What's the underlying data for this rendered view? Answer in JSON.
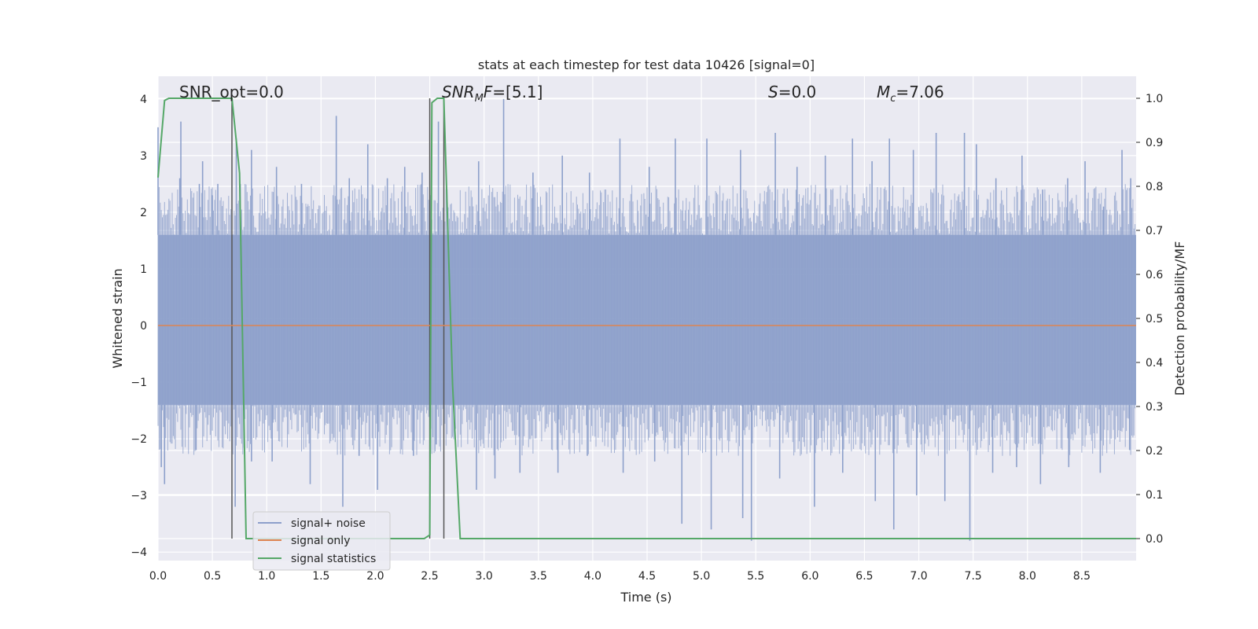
{
  "chart_data": {
    "type": "line",
    "title": "stats at each timestep for test data 10426 [signal=0]",
    "xlabel": "Time (s)",
    "ylabel": "Whitened strain",
    "y2label": "Detection probability/MF",
    "xlim": [
      0,
      9.0
    ],
    "ylim": [
      -4.15,
      4.4
    ],
    "y2lim": [
      -0.05,
      1.05
    ],
    "xticks": [
      "0.0",
      "0.5",
      "1.0",
      "1.5",
      "2.0",
      "2.5",
      "3.0",
      "3.5",
      "4.0",
      "4.5",
      "5.0",
      "5.5",
      "6.0",
      "6.5",
      "7.0",
      "7.5",
      "8.0",
      "8.5"
    ],
    "yticks": [
      "4",
      "3",
      "2",
      "1",
      "0",
      "−1",
      "−2",
      "−3",
      "−4"
    ],
    "y2ticks": [
      "1.0",
      "0.9",
      "0.8",
      "0.7",
      "0.6",
      "0.5",
      "0.4",
      "0.3",
      "0.2",
      "0.1",
      "0.0"
    ],
    "grid": true,
    "legend_position": "lower-left",
    "annotations": [
      {
        "id": "snr-opt",
        "prefix": "SNR_opt=",
        "value": "0.0"
      },
      {
        "id": "snr-mf",
        "base": "SNR",
        "sub": "M",
        "after": "F=",
        "value": "[5.1]"
      },
      {
        "id": "s-stat",
        "base": "S",
        "after": "=",
        "value": "0.0"
      },
      {
        "id": "mc",
        "base": "M",
        "sub": "c",
        "after": "=",
        "value": "7.06"
      }
    ],
    "vlines_x": [
      0.68,
      2.5,
      2.63
    ],
    "noise": {
      "baseline_low": -1.4,
      "baseline_high": 1.6,
      "spikes_up": [
        [
          0.0,
          3.5
        ],
        [
          0.2,
          2.6
        ],
        [
          0.21,
          3.6
        ],
        [
          0.38,
          2.5
        ],
        [
          0.41,
          2.9
        ],
        [
          0.5,
          2.3
        ],
        [
          0.55,
          2.5
        ],
        [
          0.72,
          3.3
        ],
        [
          0.86,
          3.1
        ],
        [
          1.09,
          2.8
        ],
        [
          1.32,
          2.5
        ],
        [
          1.64,
          3.7
        ],
        [
          1.76,
          2.6
        ],
        [
          1.93,
          3.2
        ],
        [
          2.11,
          2.6
        ],
        [
          2.27,
          2.8
        ],
        [
          2.43,
          2.7
        ],
        [
          2.58,
          3.6
        ],
        [
          2.95,
          2.9
        ],
        [
          3.18,
          4.0
        ],
        [
          3.45,
          2.7
        ],
        [
          3.72,
          3.0
        ],
        [
          3.97,
          2.7
        ],
        [
          4.25,
          3.3
        ],
        [
          4.52,
          2.8
        ],
        [
          4.76,
          3.3
        ],
        [
          5.05,
          3.3
        ],
        [
          5.36,
          3.1
        ],
        [
          5.68,
          3.4
        ],
        [
          5.88,
          2.8
        ],
        [
          6.14,
          3.0
        ],
        [
          6.39,
          3.3
        ],
        [
          6.57,
          2.9
        ],
        [
          6.73,
          3.3
        ],
        [
          6.95,
          3.1
        ],
        [
          7.16,
          3.4
        ],
        [
          7.42,
          3.4
        ],
        [
          7.53,
          3.2
        ],
        [
          7.71,
          2.6
        ],
        [
          7.95,
          3.0
        ],
        [
          8.14,
          2.4
        ],
        [
          8.37,
          2.6
        ],
        [
          8.53,
          2.9
        ],
        [
          8.7,
          2.1
        ],
        [
          8.87,
          3.1
        ],
        [
          8.95,
          2.6
        ]
      ],
      "spikes_down": [
        [
          0.03,
          -2.5
        ],
        [
          0.06,
          -2.8
        ],
        [
          0.35,
          -2.2
        ],
        [
          0.71,
          -3.2
        ],
        [
          0.86,
          -2.4
        ],
        [
          1.05,
          -2.4
        ],
        [
          1.4,
          -2.8
        ],
        [
          1.7,
          -3.2
        ],
        [
          1.85,
          -2.3
        ],
        [
          2.02,
          -2.9
        ],
        [
          2.35,
          -2.3
        ],
        [
          2.56,
          -2.1
        ],
        [
          2.93,
          -2.9
        ],
        [
          3.1,
          -2.7
        ],
        [
          3.33,
          -2.6
        ],
        [
          3.68,
          -2.6
        ],
        [
          3.95,
          -2.3
        ],
        [
          4.28,
          -2.6
        ],
        [
          4.57,
          -2.4
        ],
        [
          4.82,
          -3.5
        ],
        [
          5.09,
          -3.6
        ],
        [
          5.38,
          -3.4
        ],
        [
          5.46,
          -3.8
        ],
        [
          5.72,
          -2.7
        ],
        [
          6.04,
          -3.2
        ],
        [
          6.3,
          -2.6
        ],
        [
          6.6,
          -3.1
        ],
        [
          6.77,
          -3.6
        ],
        [
          6.98,
          -3.0
        ],
        [
          7.24,
          -3.1
        ],
        [
          7.47,
          -3.8
        ],
        [
          7.68,
          -2.6
        ],
        [
          7.9,
          -2.5
        ],
        [
          8.12,
          -2.8
        ],
        [
          8.38,
          -2.5
        ],
        [
          8.67,
          -2.6
        ],
        [
          8.94,
          -2.2
        ]
      ]
    },
    "series": [
      {
        "name": "signal+ noise",
        "color": "#8da0cb"
      },
      {
        "name": "signal only",
        "color": "#dd8452",
        "x": [
          0,
          9.0
        ],
        "y": [
          0,
          0
        ]
      },
      {
        "name": "signal statistics",
        "color": "#55a868",
        "axis": "right",
        "x": [
          0.0,
          0.06,
          0.1,
          0.5,
          0.68,
          0.75,
          0.81,
          2.45,
          2.5,
          2.52,
          2.57,
          2.63,
          2.71,
          2.78,
          9.0
        ],
        "y": [
          0.82,
          0.995,
          1.0,
          1.0,
          1.0,
          0.83,
          0.0,
          0.0,
          0.008,
          0.99,
          1.0,
          1.0,
          0.35,
          0.0,
          0.0
        ]
      }
    ]
  }
}
